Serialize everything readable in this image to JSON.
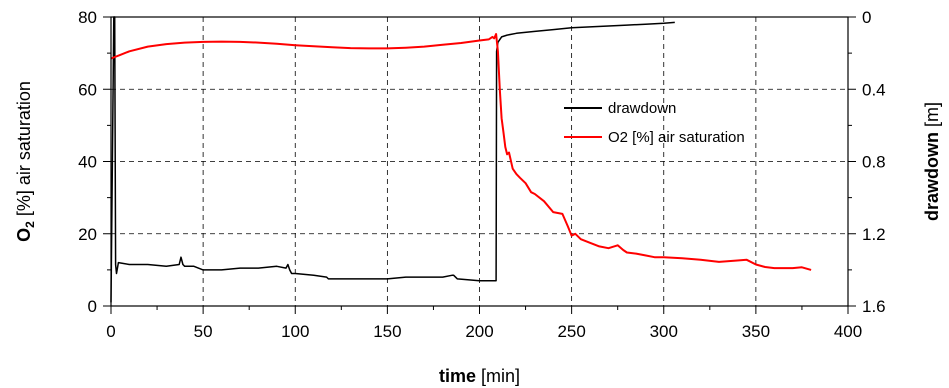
{
  "chart_data": {
    "type": "line",
    "x_axis": {
      "title_bold": "time",
      "title_rest": " [min]",
      "range": [
        0,
        400
      ],
      "ticks": [
        "0",
        "50",
        "100",
        "150",
        "200",
        "250",
        "300",
        "350",
        "400"
      ]
    },
    "y_left": {
      "title_bold": "O",
      "title_sub": "2",
      "title_rest": " [%] air saturation",
      "range": [
        0,
        80
      ],
      "ticks": [
        "0",
        "20",
        "40",
        "60",
        "80"
      ]
    },
    "y_right": {
      "title_bold": "drawdown",
      "title_rest": " [m]",
      "range": [
        1.6,
        0
      ],
      "inverted": true,
      "ticks": [
        "0",
        "0.4",
        "0.8",
        "1.2",
        "1.6"
      ]
    },
    "grid": true,
    "legend_position": "center-right",
    "series": [
      {
        "name": "drawdown",
        "axis": "right",
        "color": "#000000",
        "x": [
          0,
          1.5,
          2,
          2.5,
          3,
          4,
          10,
          20,
          30,
          37,
          38,
          39,
          40,
          45,
          50,
          60,
          70,
          80,
          90,
          95,
          96,
          97,
          98,
          100,
          110,
          117,
          118,
          120,
          130,
          140,
          150,
          160,
          170,
          180,
          185,
          186,
          188,
          200,
          205,
          208,
          209,
          209.3,
          210,
          212,
          215,
          220,
          230,
          240,
          250,
          260,
          270,
          280,
          290,
          300,
          306
        ],
        "y": [
          1.58,
          0.0,
          0.0,
          1.37,
          1.42,
          1.36,
          1.37,
          1.37,
          1.38,
          1.37,
          1.33,
          1.37,
          1.38,
          1.38,
          1.4,
          1.4,
          1.39,
          1.39,
          1.38,
          1.39,
          1.37,
          1.4,
          1.42,
          1.42,
          1.43,
          1.44,
          1.45,
          1.45,
          1.45,
          1.45,
          1.45,
          1.44,
          1.44,
          1.44,
          1.43,
          1.43,
          1.45,
          1.46,
          1.46,
          1.46,
          1.46,
          0.19,
          0.14,
          0.11,
          0.1,
          0.09,
          0.08,
          0.07,
          0.06,
          0.055,
          0.05,
          0.045,
          0.04,
          0.035,
          0.03
        ]
      },
      {
        "name": "O2 [%] air saturation",
        "axis": "left",
        "color": "#ff0000",
        "x": [
          0,
          5,
          10,
          20,
          30,
          40,
          50,
          60,
          70,
          80,
          90,
          100,
          110,
          120,
          130,
          140,
          150,
          160,
          170,
          180,
          190,
          200,
          205,
          207,
          208,
          209,
          210,
          211,
          212,
          213,
          214,
          215,
          216,
          218,
          220,
          222,
          225,
          228,
          230,
          235,
          240,
          245,
          248,
          250,
          252,
          255,
          260,
          265,
          270,
          275,
          278,
          280,
          285,
          290,
          295,
          300,
          310,
          320,
          330,
          340,
          345,
          350,
          355,
          360,
          370,
          375,
          380
        ],
        "y": [
          68.5,
          69.5,
          70.5,
          71.8,
          72.5,
          72.9,
          73.1,
          73.2,
          73.1,
          72.9,
          72.6,
          72.2,
          71.9,
          71.6,
          71.4,
          71.3,
          71.3,
          71.5,
          71.8,
          72.3,
          72.8,
          73.5,
          73.8,
          74.5,
          74.1,
          75.3,
          70.5,
          60.0,
          52.0,
          48.0,
          44.0,
          42.0,
          42.5,
          38.0,
          36.5,
          35.5,
          34.0,
          31.5,
          31.0,
          29.0,
          26.0,
          25.5,
          22.0,
          19.5,
          20.0,
          18.5,
          17.5,
          16.5,
          16.0,
          16.8,
          15.5,
          14.8,
          14.5,
          14.0,
          13.5,
          13.5,
          13.2,
          12.8,
          12.2,
          12.6,
          12.8,
          11.5,
          10.8,
          10.5,
          10.5,
          10.7,
          10.0
        ]
      }
    ]
  }
}
